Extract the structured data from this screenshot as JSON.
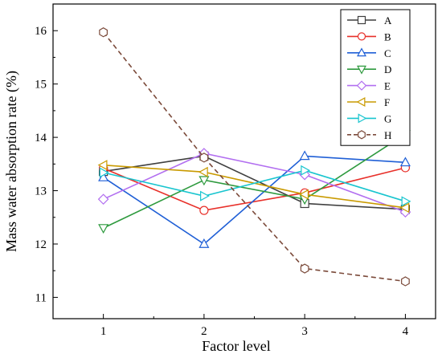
{
  "chart_data": {
    "type": "line",
    "title": "",
    "xlabel": "Factor level",
    "ylabel": "Mass water absorption rate (%)",
    "x": [
      1,
      2,
      3,
      4
    ],
    "xticks": [
      "1",
      "2",
      "3",
      "4"
    ],
    "xlim": [
      0.5,
      4.3
    ],
    "ylim": [
      10.6,
      16.5
    ],
    "yticks": [
      11,
      12,
      13,
      14,
      15,
      16
    ],
    "grid": false,
    "legend_position": "top-right",
    "series": [
      {
        "name": "A",
        "color": "#3f3f3f",
        "marker": "square",
        "dashed": false,
        "values": [
          13.36,
          13.65,
          12.76,
          12.65
        ]
      },
      {
        "name": "B",
        "color": "#e8302a",
        "marker": "circle",
        "dashed": false,
        "values": [
          13.42,
          12.63,
          12.96,
          13.43
        ]
      },
      {
        "name": "C",
        "color": "#1f5fd6",
        "marker": "triangle-up",
        "dashed": false,
        "values": [
          13.25,
          12.0,
          13.65,
          13.53
        ]
      },
      {
        "name": "D",
        "color": "#2e9a3e",
        "marker": "triangle-down",
        "dashed": false,
        "values": [
          12.3,
          13.2,
          12.84,
          14.06
        ]
      },
      {
        "name": "E",
        "color": "#b26ff0",
        "marker": "diamond",
        "dashed": false,
        "values": [
          12.84,
          13.7,
          13.3,
          12.6
        ]
      },
      {
        "name": "F",
        "color": "#c99a00",
        "marker": "triangle-left",
        "dashed": false,
        "values": [
          13.48,
          13.35,
          12.93,
          12.68
        ]
      },
      {
        "name": "G",
        "color": "#19c5cf",
        "marker": "triangle-right",
        "dashed": false,
        "values": [
          13.34,
          12.9,
          13.38,
          12.8
        ]
      },
      {
        "name": "H",
        "color": "#7b4a3a",
        "marker": "hexagon",
        "dashed": true,
        "values": [
          15.97,
          13.62,
          11.54,
          11.3
        ]
      }
    ]
  }
}
